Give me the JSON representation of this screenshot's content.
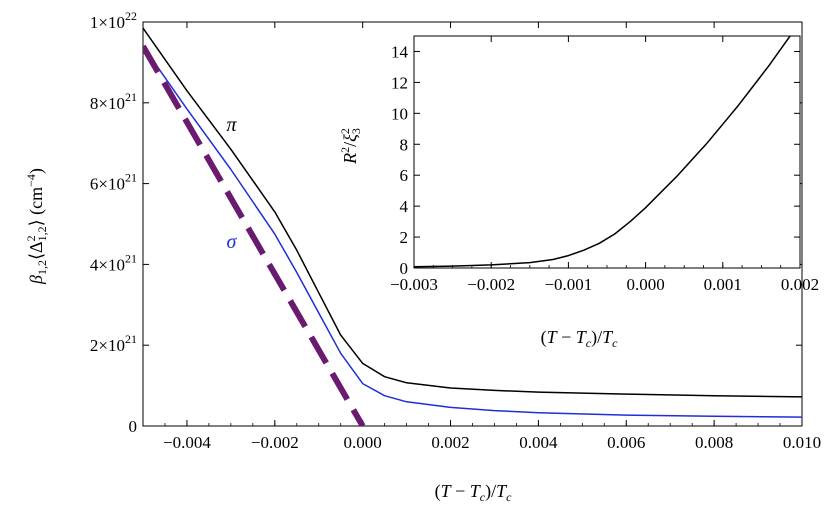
{
  "chart_data": [
    {
      "type": "line",
      "xlabel": "(T − T_c)/T_c",
      "ylabel": "β_{1,2}⟨Δ²_{1,2}⟩ (cm⁻⁴)",
      "xlim": [
        -0.005,
        0.01
      ],
      "ylim": [
        0,
        1e+22
      ],
      "x_ticks": [
        -0.004,
        -0.002,
        0.0,
        0.002,
        0.004,
        0.006,
        0.008,
        0.01
      ],
      "x_tick_labels": [
        "−0.004",
        "−0.002",
        "0.000",
        "0.002",
        "0.004",
        "0.006",
        "0.008",
        "0.010"
      ],
      "y_ticks": [
        0,
        2e+21,
        4e+21,
        6e+21,
        8e+21,
        1e+22
      ],
      "y_tick_labels": [
        {
          "base": "0",
          "exp": ""
        },
        {
          "base": "2×10",
          "exp": "21"
        },
        {
          "base": "4×10",
          "exp": "21"
        },
        {
          "base": "6×10",
          "exp": "21"
        },
        {
          "base": "8×10",
          "exp": "21"
        },
        {
          "base": "1×10",
          "exp": "22"
        }
      ],
      "grid": false,
      "annotations": [
        {
          "text": "π",
          "x": -0.0031,
          "y": 7.3e+21,
          "color": "#000000"
        },
        {
          "text": "σ",
          "x": -0.0031,
          "y": 4.4e+21,
          "color": "#1f2fd8"
        }
      ],
      "series": [
        {
          "color": "#000000",
          "style": "solid",
          "x": [
            -0.005,
            -0.004,
            -0.003,
            -0.002,
            -0.0015,
            -0.001,
            -0.0005,
            0.0,
            0.0005,
            0.001,
            0.002,
            0.003,
            0.004,
            0.006,
            0.008,
            0.01
          ],
          "y": [
            9.85e+21,
            8.3e+21,
            6.85e+21,
            5.3e+21,
            4.35e+21,
            3.3e+21,
            2.25e+21,
            1.55e+21,
            1.22e+21,
            1.07e+21,
            9.4e+20,
            8.8e+20,
            8.4e+20,
            7.9e+20,
            7.5e+20,
            7.2e+20
          ]
        },
        {
          "color": "#1f2fd8",
          "style": "solid",
          "x": [
            -0.005,
            -0.004,
            -0.003,
            -0.002,
            -0.0015,
            -0.001,
            -0.0005,
            0.0,
            0.0005,
            0.001,
            0.002,
            0.003,
            0.004,
            0.006,
            0.008,
            0.01
          ],
          "y": [
            9.4e+21,
            7.85e+21,
            6.35e+21,
            4.75e+21,
            3.8e+21,
            2.8e+21,
            1.8e+21,
            1.05e+21,
            7.5e+20,
            6e+20,
            4.6e+20,
            3.8e+20,
            3.3e+20,
            2.7e+20,
            2.4e+20,
            2.2e+20
          ]
        },
        {
          "color": "#6a1b70",
          "style": "dashed",
          "x": [
            -0.005,
            0.0
          ],
          "y": [
            9.4e+21,
            0.0
          ]
        }
      ]
    },
    {
      "type": "line",
      "inset": true,
      "xlabel": "(T − T_c)/T_c",
      "ylabel": "R²/ξ²₃",
      "xlim": [
        -0.003,
        0.002
      ],
      "ylim": [
        0,
        15
      ],
      "x_ticks": [
        -0.003,
        -0.002,
        -0.001,
        0.0,
        0.001,
        0.002
      ],
      "x_tick_labels": [
        "−0.003",
        "−0.002",
        "−0.001",
        "0.000",
        "0.001",
        "0.002"
      ],
      "y_ticks": [
        0,
        2,
        4,
        6,
        8,
        10,
        12,
        14
      ],
      "y_tick_labels": [
        "0",
        "2",
        "4",
        "6",
        "8",
        "10",
        "12",
        "14"
      ],
      "grid": false,
      "series": [
        {
          "color": "#000000",
          "style": "solid",
          "x": [
            -0.003,
            -0.0025,
            -0.002,
            -0.0015,
            -0.0012,
            -0.001,
            -0.0008,
            -0.0006,
            -0.0004,
            -0.0002,
            0.0,
            0.0002,
            0.0004,
            0.0006,
            0.0008,
            0.001,
            0.0012,
            0.0014,
            0.0016,
            0.0018,
            0.0019
          ],
          "y": [
            0.08,
            0.12,
            0.2,
            0.35,
            0.55,
            0.8,
            1.15,
            1.6,
            2.2,
            3.0,
            3.9,
            4.9,
            5.9,
            7.0,
            8.1,
            9.3,
            10.5,
            11.8,
            13.1,
            14.5,
            15.2
          ]
        }
      ]
    }
  ]
}
